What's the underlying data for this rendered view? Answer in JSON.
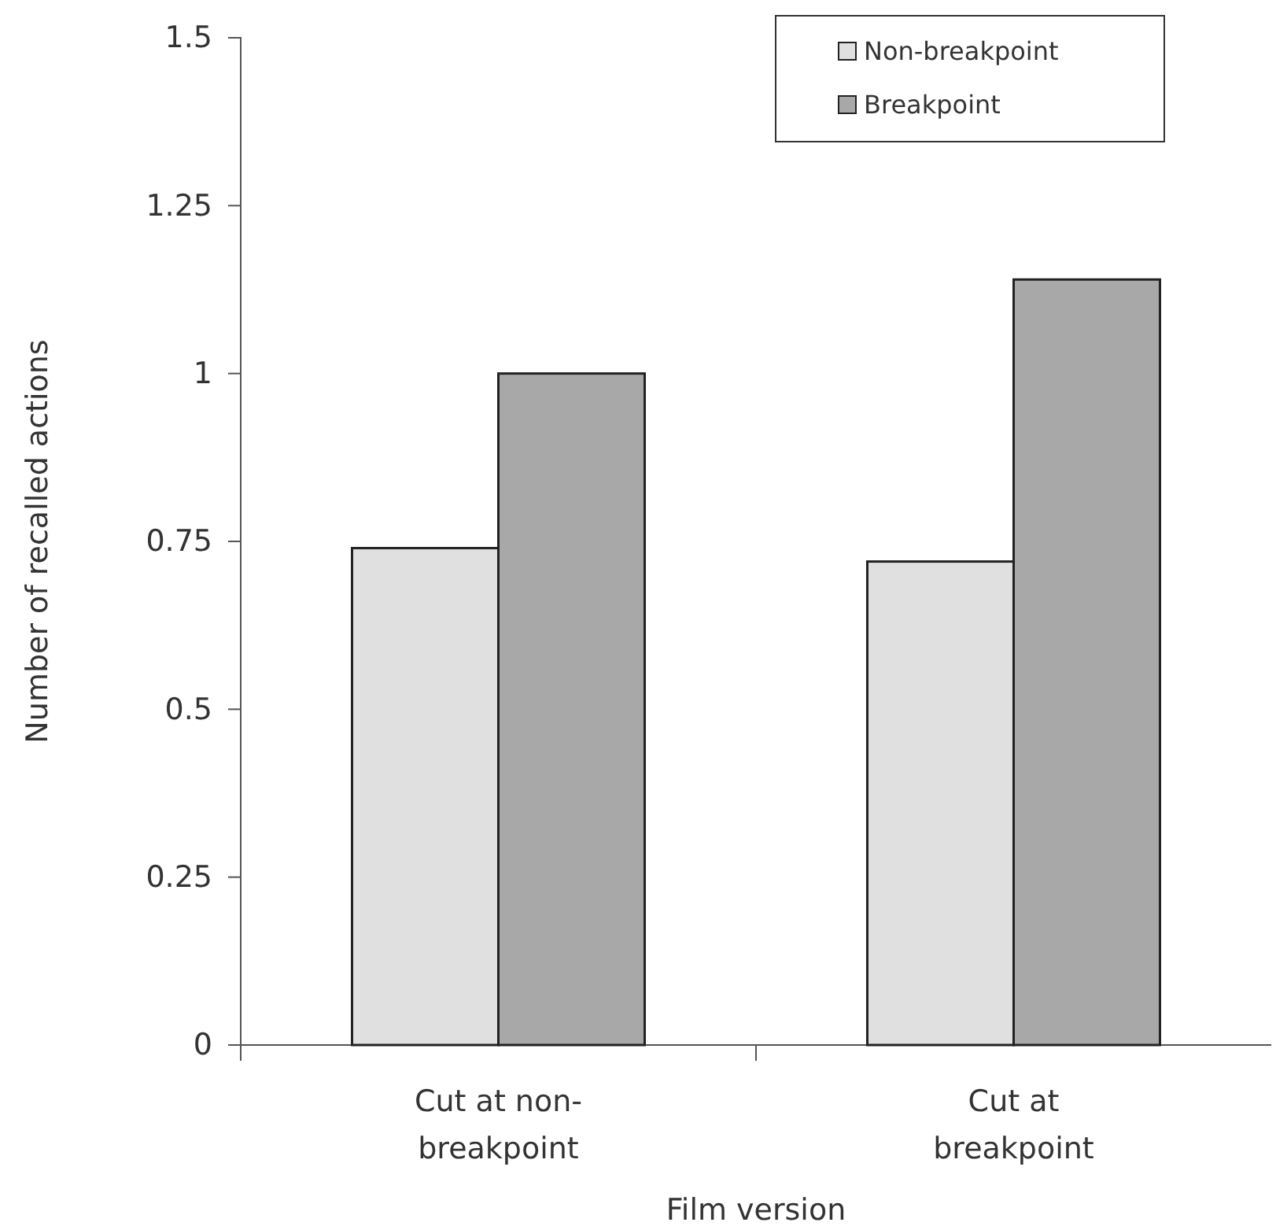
{
  "chart_data": {
    "type": "bar",
    "xlabel": "Film version",
    "ylabel": "Number of recalled actions",
    "categories": [
      "Cut at non-breakpoint",
      "Cut at breakpoint"
    ],
    "series": [
      {
        "name": "Non-breakpoint",
        "color": "#e0e0e0",
        "values": [
          0.74,
          0.72
        ]
      },
      {
        "name": "Breakpoint",
        "color": "#a8a8a8",
        "values": [
          1.0,
          1.14
        ]
      }
    ],
    "ylim": [
      0,
      1.5
    ],
    "yticks": [
      0,
      {
        "value": 0.25,
        "label": "0.25"
      },
      {
        "value": 0.5,
        "label": "0.5"
      },
      {
        "value": 0.75,
        "label": "0.75"
      },
      1,
      {
        "value": 1.25,
        "label": "1.25"
      },
      {
        "value": 1.5,
        "label": "1.5"
      }
    ],
    "grid": false,
    "legend": "top right"
  }
}
